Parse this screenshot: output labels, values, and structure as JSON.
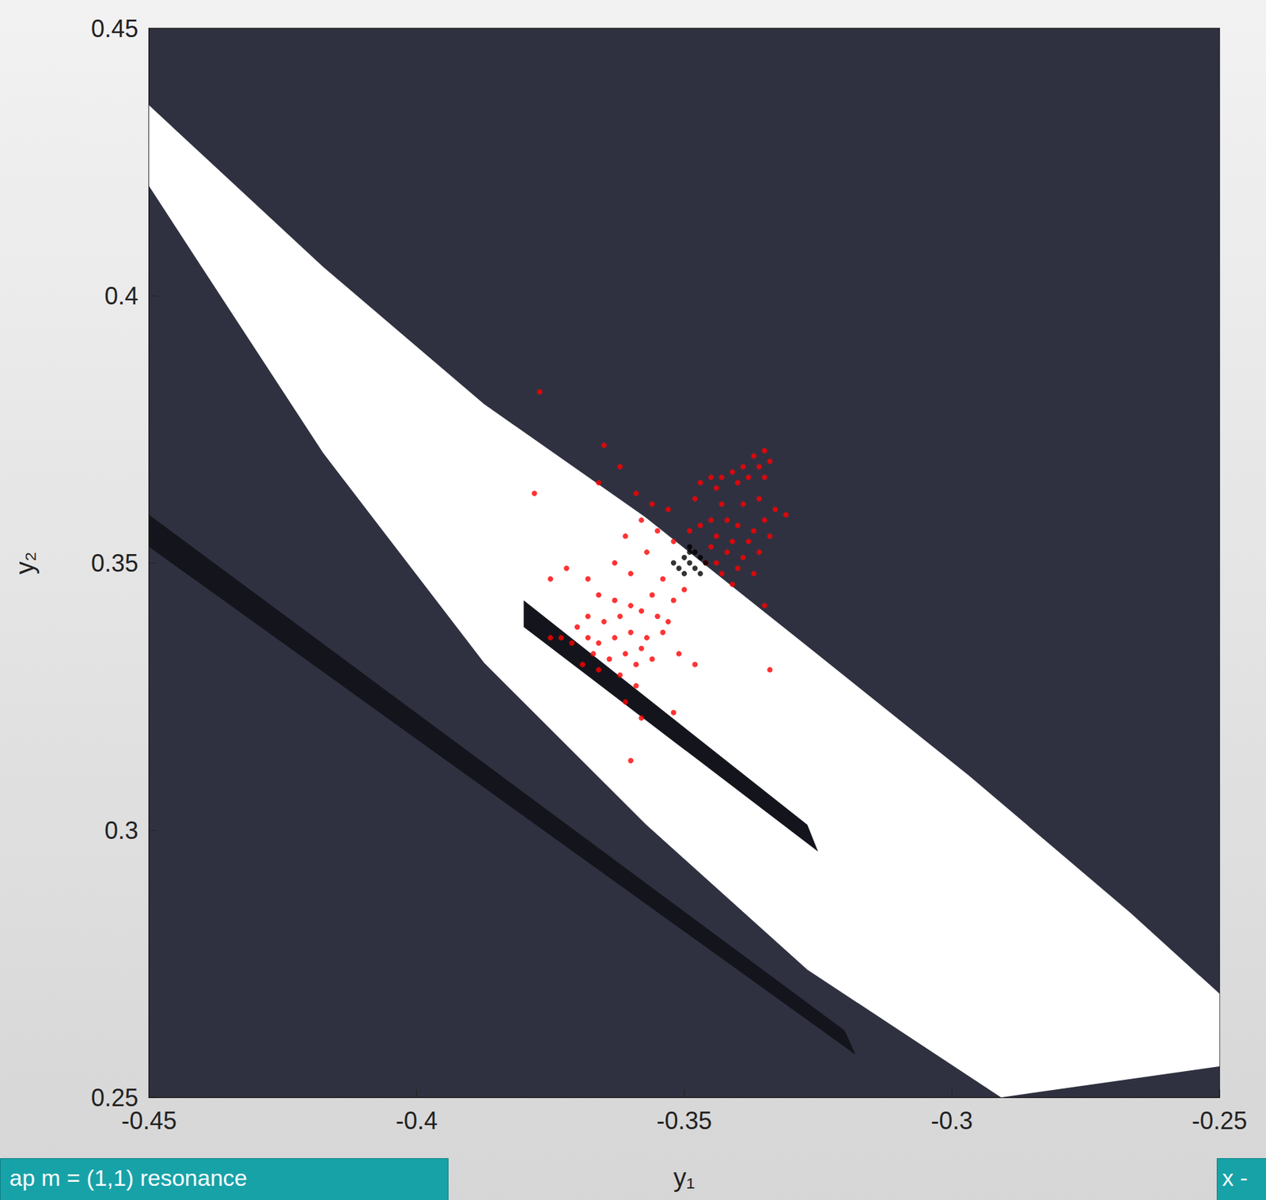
{
  "chart_data": {
    "type": "scatter",
    "xlabel": "y₁",
    "ylabel": "y₂",
    "xlim": [
      -0.45,
      -0.25
    ],
    "xticks": [
      -0.45,
      -0.4,
      -0.35,
      -0.3,
      -0.25
    ],
    "ylim": [
      0.25,
      0.45
    ],
    "yticks": [
      0.25,
      0.3,
      0.35,
      0.4,
      0.45
    ],
    "grid": false,
    "background": "#2f3140",
    "regions": [
      {
        "color": "#ffffff",
        "points": [
          [
            -0.45,
            0.4356
          ],
          [
            -0.4175,
            0.4054
          ],
          [
            -0.3874,
            0.3797
          ],
          [
            -0.3572,
            0.3585
          ],
          [
            -0.327,
            0.3344
          ],
          [
            -0.2968,
            0.3102
          ],
          [
            -0.2666,
            0.2845
          ],
          [
            -0.25,
            0.2694
          ],
          [
            -0.25,
            0.2558
          ],
          [
            -0.2908,
            0.25
          ],
          [
            -0.327,
            0.2739
          ],
          [
            -0.3572,
            0.3011
          ],
          [
            -0.3874,
            0.3313
          ],
          [
            -0.4175,
            0.3706
          ],
          [
            -0.4402,
            0.4054
          ],
          [
            -0.45,
            0.4205
          ]
        ]
      },
      {
        "color": "#14151c",
        "points": [
          [
            -0.38,
            0.343
          ],
          [
            -0.327,
            0.301
          ],
          [
            -0.325,
            0.296
          ],
          [
            -0.38,
            0.338
          ]
        ]
      },
      {
        "color": "#14151c",
        "points": [
          [
            -0.45,
            0.359
          ],
          [
            -0.32,
            0.2625
          ],
          [
            -0.318,
            0.258
          ],
          [
            -0.45,
            0.353
          ]
        ]
      }
    ],
    "series": [
      {
        "color": "#ff0000",
        "marker": "circle",
        "points": [
          [
            -0.335,
            0.371
          ],
          [
            -0.337,
            0.37
          ],
          [
            -0.334,
            0.369
          ],
          [
            -0.336,
            0.368
          ],
          [
            -0.339,
            0.368
          ],
          [
            -0.341,
            0.367
          ],
          [
            -0.343,
            0.366
          ],
          [
            -0.345,
            0.366
          ],
          [
            -0.344,
            0.364
          ],
          [
            -0.34,
            0.365
          ],
          [
            -0.338,
            0.366
          ],
          [
            -0.335,
            0.366
          ],
          [
            -0.347,
            0.365
          ],
          [
            -0.348,
            0.362
          ],
          [
            -0.343,
            0.361
          ],
          [
            -0.339,
            0.361
          ],
          [
            -0.336,
            0.362
          ],
          [
            -0.333,
            0.36
          ],
          [
            -0.331,
            0.359
          ],
          [
            -0.335,
            0.358
          ],
          [
            -0.337,
            0.356
          ],
          [
            -0.34,
            0.357
          ],
          [
            -0.342,
            0.358
          ],
          [
            -0.345,
            0.358
          ],
          [
            -0.347,
            0.357
          ],
          [
            -0.349,
            0.356
          ],
          [
            -0.344,
            0.355
          ],
          [
            -0.341,
            0.354
          ],
          [
            -0.338,
            0.354
          ],
          [
            -0.334,
            0.355
          ],
          [
            -0.336,
            0.352
          ],
          [
            -0.339,
            0.351
          ],
          [
            -0.342,
            0.352
          ],
          [
            -0.345,
            0.353
          ],
          [
            -0.34,
            0.349
          ],
          [
            -0.337,
            0.348
          ],
          [
            -0.343,
            0.348
          ],
          [
            -0.341,
            0.346
          ],
          [
            -0.334,
            0.33
          ],
          [
            -0.335,
            0.342
          ],
          [
            -0.346,
            0.35
          ],
          [
            -0.344,
            0.35
          ],
          [
            -0.377,
            0.382
          ],
          [
            -0.365,
            0.372
          ],
          [
            -0.362,
            0.368
          ],
          [
            -0.366,
            0.365
          ],
          [
            -0.359,
            0.363
          ],
          [
            -0.356,
            0.361
          ],
          [
            -0.353,
            0.36
          ],
          [
            -0.358,
            0.358
          ],
          [
            -0.355,
            0.356
          ],
          [
            -0.361,
            0.355
          ],
          [
            -0.352,
            0.354
          ],
          [
            -0.357,
            0.352
          ],
          [
            -0.363,
            0.35
          ],
          [
            -0.36,
            0.348
          ],
          [
            -0.354,
            0.347
          ],
          [
            -0.35,
            0.345
          ],
          [
            -0.352,
            0.343
          ],
          [
            -0.356,
            0.344
          ],
          [
            -0.378,
            0.363
          ],
          [
            -0.375,
            0.347
          ],
          [
            -0.372,
            0.349
          ],
          [
            -0.368,
            0.347
          ],
          [
            -0.366,
            0.344
          ],
          [
            -0.363,
            0.343
          ],
          [
            -0.36,
            0.342
          ],
          [
            -0.358,
            0.341
          ],
          [
            -0.355,
            0.34
          ],
          [
            -0.353,
            0.339
          ],
          [
            -0.362,
            0.34
          ],
          [
            -0.365,
            0.339
          ],
          [
            -0.368,
            0.34
          ],
          [
            -0.37,
            0.338
          ],
          [
            -0.373,
            0.336
          ],
          [
            -0.371,
            0.335
          ],
          [
            -0.368,
            0.336
          ],
          [
            -0.366,
            0.335
          ],
          [
            -0.363,
            0.336
          ],
          [
            -0.36,
            0.337
          ],
          [
            -0.357,
            0.336
          ],
          [
            -0.354,
            0.337
          ],
          [
            -0.358,
            0.334
          ],
          [
            -0.361,
            0.333
          ],
          [
            -0.364,
            0.332
          ],
          [
            -0.367,
            0.333
          ],
          [
            -0.369,
            0.331
          ],
          [
            -0.366,
            0.33
          ],
          [
            -0.362,
            0.329
          ],
          [
            -0.359,
            0.331
          ],
          [
            -0.356,
            0.332
          ],
          [
            -0.351,
            0.333
          ],
          [
            -0.359,
            0.327
          ],
          [
            -0.361,
            0.324
          ],
          [
            -0.358,
            0.321
          ],
          [
            -0.36,
            0.313
          ],
          [
            -0.352,
            0.322
          ],
          [
            -0.375,
            0.336
          ],
          [
            -0.348,
            0.331
          ]
        ]
      },
      {
        "color": "#000000",
        "marker": "circle",
        "points": [
          [
            -0.349,
            0.35
          ],
          [
            -0.35,
            0.351
          ],
          [
            -0.348,
            0.349
          ],
          [
            -0.351,
            0.349
          ],
          [
            -0.347,
            0.351
          ],
          [
            -0.349,
            0.352
          ],
          [
            -0.35,
            0.348
          ],
          [
            -0.348,
            0.352
          ],
          [
            -0.346,
            0.35
          ],
          [
            -0.352,
            0.35
          ],
          [
            -0.349,
            0.353
          ],
          [
            -0.347,
            0.348
          ]
        ]
      }
    ],
    "annotations": [
      {
        "text": "ap m = (1,1) resonance",
        "color": "#17a2a8",
        "position": "bottom-left"
      },
      {
        "text": "x -",
        "color": "#17a2a8",
        "position": "bottom-right"
      }
    ]
  }
}
